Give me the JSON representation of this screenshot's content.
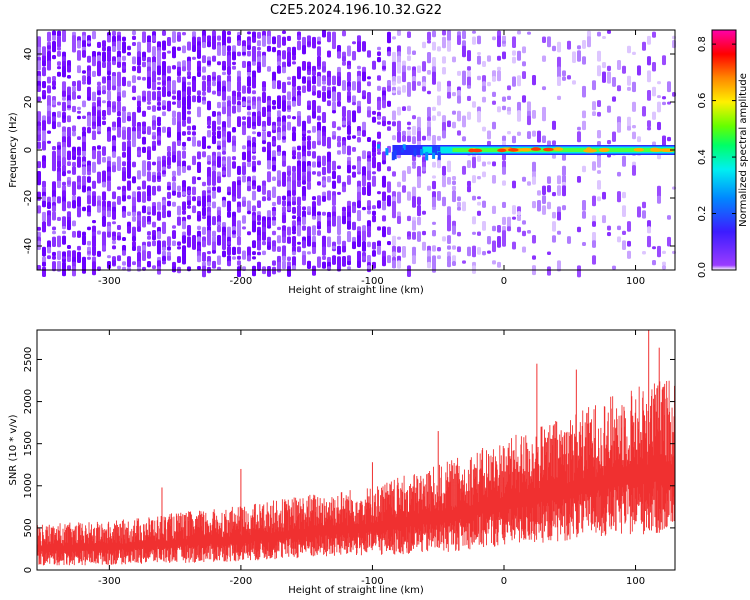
{
  "title": "C2E5.2024.196.10.32.G22",
  "colors": {
    "snr_line": "#f03030",
    "frame": "#000000"
  },
  "chart_data": [
    {
      "type": "heatmap",
      "xlabel": "Height of straight line (km)",
      "ylabel": "Frequency (Hz)",
      "xlim": [
        -355,
        130
      ],
      "ylim": [
        -50,
        50
      ],
      "xticks": [
        -300,
        -200,
        -100,
        0,
        100
      ],
      "yticks": [
        -40,
        -20,
        0,
        20,
        40
      ],
      "colorbar": {
        "label": "Normalized spectral amplitude",
        "range": [
          0,
          0.85
        ],
        "ticks": [
          0.0,
          0.2,
          0.4,
          0.6,
          0.8
        ],
        "tick_labels": [
          "0.0",
          "0.2",
          "0.4",
          "0.6",
          "0.8"
        ],
        "colormap": "rainbow (violet-blue-cyan-green-yellow-red-magenta)"
      },
      "ridge": {
        "description": "Narrow high-amplitude ridge near 0 Hz",
        "start_x": -100,
        "end_x": 130,
        "frequency": 0,
        "peak_amplitude": 0.85
      },
      "noise": {
        "description": "Background noise amplitude decreasing with height",
        "left_density": 0.55,
        "right_density": 0.15
      }
    },
    {
      "type": "line",
      "xlabel": "Height of straight line (km)",
      "ylabel": "SNR (10 * v/v)",
      "xlim": [
        -355,
        130
      ],
      "ylim": [
        0,
        2850
      ],
      "xticks": [
        -300,
        -200,
        -100,
        0,
        100
      ],
      "yticks": [
        0,
        500,
        1000,
        1500,
        2000,
        2500
      ],
      "envelope": {
        "description": "Noisy SNR trace, envelope values per height",
        "x": [
          -355,
          -300,
          -250,
          -200,
          -150,
          -100,
          -50,
          0,
          50,
          100,
          130
        ],
        "lower": [
          50,
          60,
          80,
          100,
          140,
          170,
          200,
          280,
          350,
          420,
          400
        ],
        "upper": [
          550,
          580,
          680,
          760,
          900,
          1000,
          1250,
          1550,
          1850,
          2200,
          2300
        ]
      },
      "spikes": [
        {
          "x": -260,
          "y": 980
        },
        {
          "x": -200,
          "y": 1200
        },
        {
          "x": -100,
          "y": 1280
        },
        {
          "x": -50,
          "y": 1650
        },
        {
          "x": 25,
          "y": 2450
        },
        {
          "x": 55,
          "y": 2380
        },
        {
          "x": 110,
          "y": 2850
        },
        {
          "x": 118,
          "y": 2640
        }
      ]
    }
  ]
}
